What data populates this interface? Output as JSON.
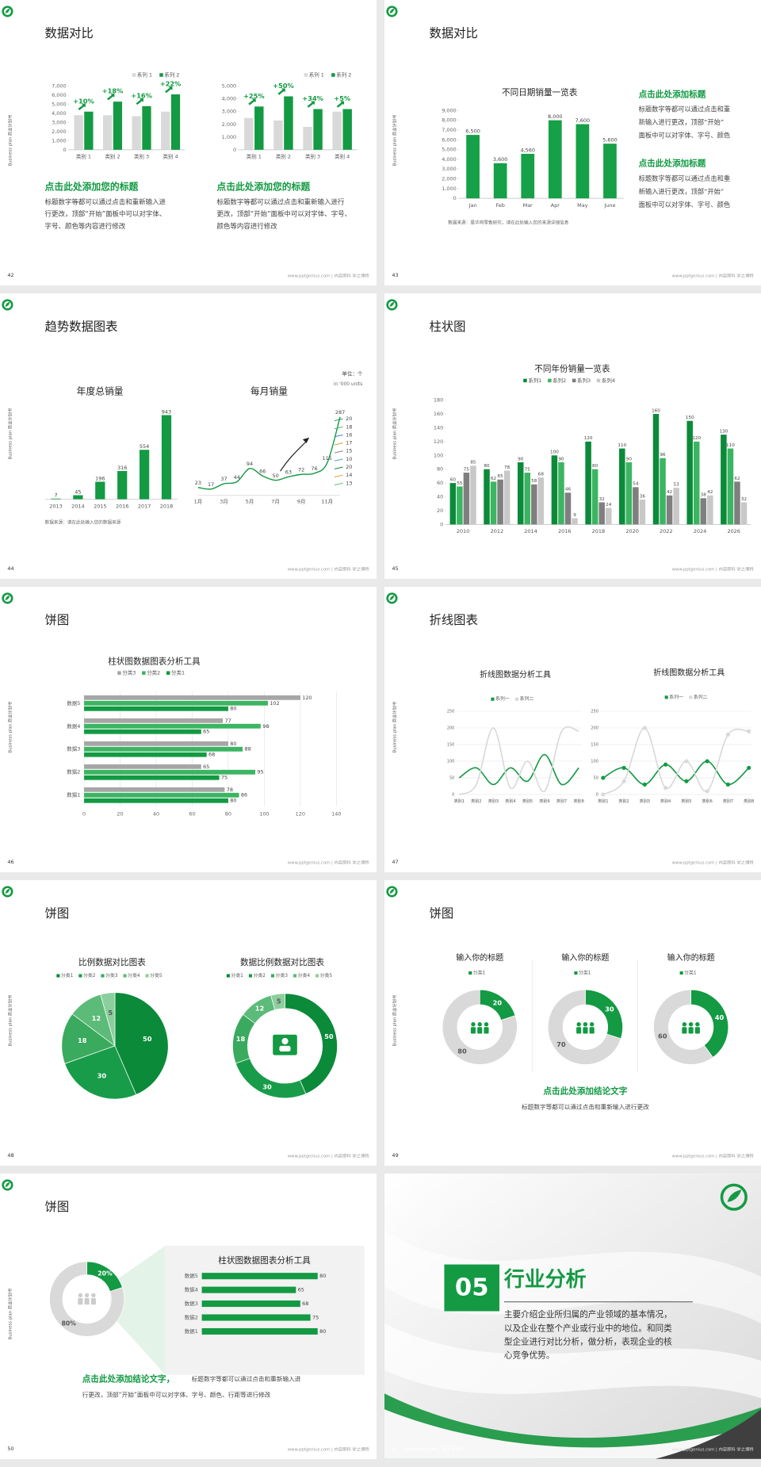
{
  "side_label": "Business plan 商业计划书",
  "footer": "www.pptgenius.com | 内容即科 学之博特",
  "slides": [
    {
      "number": "42",
      "title": "数据对比",
      "charts": [
        {
          "type": "bar",
          "categories": [
            "类别 1",
            "类别 2",
            "类别 3",
            "类别 4"
          ],
          "series": [
            {
              "name": "系列 1",
              "color": "#d9d9d9",
              "values": [
                3800,
                3800,
                3700,
                4200
              ]
            },
            {
              "name": "系列 2",
              "color": "#139a43",
              "values": [
                4200,
                5300,
                4800,
                6100
              ]
            }
          ],
          "ylim": [
            0,
            7000
          ],
          "yticks": [
            0,
            {
              "value": 1000,
              "label": "1,000"
            },
            {
              "value": 2000,
              "label": "2,000"
            },
            {
              "value": 3000,
              "label": "3,000"
            },
            {
              "value": 4000,
              "label": "4,000"
            },
            {
              "value": 5000,
              "label": "5,000"
            },
            {
              "value": 6000,
              "label": "6,000"
            },
            {
              "value": 7000,
              "label": "7,000"
            }
          ],
          "annotations": [
            "+10%",
            "+18%",
            "+16%",
            "+22%"
          ]
        },
        {
          "type": "bar",
          "categories": [
            "类别 1",
            "类别 2",
            "类别 3",
            "类别 4"
          ],
          "series": [
            {
              "name": "系列 1",
              "color": "#d9d9d9",
              "values": [
                2500,
                2300,
                1800,
                3000
              ]
            },
            {
              "name": "系列 2",
              "color": "#139a43",
              "values": [
                3400,
                4200,
                3200,
                3200
              ]
            }
          ],
          "ylim": [
            0,
            5000
          ],
          "yticks": [
            0,
            {
              "value": 1000,
              "label": "1,000"
            },
            {
              "value": 2000,
              "label": "2,000"
            },
            {
              "value": 3000,
              "label": "3,000"
            },
            {
              "value": 4000,
              "label": "4,000"
            },
            {
              "value": 5000,
              "label": "5,000"
            }
          ],
          "annotations": [
            "+25%",
            "+50%",
            "+34%",
            "+5%"
          ]
        }
      ],
      "headings": [
        "点击此处添加您的标题",
        "点击此处添加您的标题"
      ],
      "body": [
        [
          "标题数字等都可以通过点击和重新输入进",
          "行更改，顶部“开始”面板中可以对字体、",
          "字号、颜色等内容进行修改"
        ],
        [
          "标题数字等都可以通过点击和重新输入进行",
          "更改，顶部“开始”面板中可以对字体、字号、",
          "颜色等内容进行修改"
        ]
      ]
    },
    {
      "number": "43",
      "title": "数据对比",
      "charts": [
        {
          "type": "bar",
          "title": "不同日期销量一览表",
          "categories": [
            "Jan",
            "Feb",
            "Mar",
            "Apr",
            "May",
            "June"
          ],
          "values": [
            6500,
            3600,
            4560,
            8000,
            7600,
            5600
          ],
          "value_labels": [
            "6,500",
            "3,600",
            "4,560",
            "8,000",
            "7,600",
            "5,600"
          ],
          "color": "#16a047",
          "ylim": [
            0,
            9000
          ],
          "yticks": [
            0,
            {
              "value": 1000,
              "label": "1,000"
            },
            {
              "value": 2000,
              "label": "2,000"
            },
            {
              "value": 3000,
              "label": "3,000"
            },
            {
              "value": 4000,
              "label": "4,000"
            },
            {
              "value": 5000,
              "label": "5,000"
            },
            {
              "value": 6000,
              "label": "6,000"
            },
            {
              "value": 7000,
              "label": "7,000"
            },
            {
              "value": 8000,
              "label": "8,000"
            },
            {
              "value": 9000,
              "label": "9,000"
            }
          ]
        }
      ],
      "note": "数据来源：是华鸡零售研究，请在此处输入您的来源详细信息",
      "headings": [
        "点击此处添加标题",
        "点击此处添加标题"
      ],
      "body": [
        [
          "标题数字等都可以通过点击和重",
          "新输入进行更改，顶部“开始”",
          "面板中可以对字体、字号、颜色"
        ],
        [
          "标题数字等都可以通过点击和重",
          "新输入进行更改，顶部“开始”",
          "面板中可以对字体、字号、颜色"
        ]
      ]
    },
    {
      "number": "44",
      "title": "趋势数据图表",
      "charts": [
        {
          "type": "bar",
          "title": "年度总销量",
          "categories": [
            "2013",
            "2014",
            "2015",
            "2016",
            "2017",
            "2018"
          ],
          "values": [
            7,
            45,
            196,
            316,
            554,
            943
          ],
          "color": "#139a43",
          "data_labels": true
        },
        {
          "type": "line",
          "title": "每月销量",
          "categories": [
            "1月",
            null,
            "3月",
            null,
            "5月",
            null,
            "7月",
            null,
            "9月",
            null,
            "11月",
            null
          ],
          "values": [
            23,
            17,
            37,
            44,
            94,
            66,
            50,
            63,
            72,
            76,
            115,
            287
          ],
          "color": "#139a43",
          "data_labels": true,
          "smooth": true,
          "end_labels": [
            "20",
            "18",
            "16",
            "17",
            "15",
            "10",
            "20",
            "14",
            "13"
          ]
        }
      ],
      "units": [
        "单位：个",
        "in '000 units"
      ],
      "note": "数据来源：请在此处输入您的数据来源"
    },
    {
      "number": "45",
      "title": "柱状图",
      "charts": [
        {
          "type": "bar",
          "title": "不同年份销量一览表",
          "categories": [
            "2010",
            "2012",
            "2014",
            "2016",
            "2018",
            "2020",
            "2022",
            "2024",
            "2026"
          ],
          "series": [
            {
              "name": "系列1",
              "color": "#0b8a3a",
              "values": [
                60,
                80,
                90,
                100,
                120,
                110,
                160,
                150,
                130
              ]
            },
            {
              "name": "系列2",
              "color": "#3bb561",
              "values": [
                55,
                62,
                75,
                90,
                80,
                90,
                96,
                120,
                110
              ]
            },
            {
              "name": "系列3",
              "color": "#7f7f7f",
              "values": [
                75,
                65,
                58,
                46,
                32,
                54,
                42,
                38,
                62
              ]
            },
            {
              "name": "系列4",
              "color": "#c8c8c8",
              "values": [
                85,
                78,
                68,
                9,
                24,
                36,
                53,
                42,
                32
              ]
            }
          ],
          "ylim": [
            0,
            180
          ],
          "yticks": [
            0,
            20,
            40,
            60,
            80,
            100,
            120,
            140,
            160,
            180
          ],
          "data_labels": true
        }
      ]
    },
    {
      "number": "46",
      "title": "饼图",
      "charts": [
        {
          "type": "hbar",
          "title": "柱状图数据图表分析工具",
          "categories": [
            "数据1",
            "数据2",
            "数据3",
            "数据4",
            "数据5"
          ],
          "series": [
            {
              "name": "分类3",
              "color": "#a6a6a6",
              "values": [
                78,
                65,
                80,
                77,
                120
              ]
            },
            {
              "name": "分类2",
              "color": "#3bb561",
              "values": [
                86,
                95,
                88,
                98,
                102
              ]
            },
            {
              "name": "分类1",
              "color": "#139a43",
              "values": [
                80,
                75,
                68,
                65,
                80
              ]
            }
          ],
          "xlim": [
            0,
            140
          ],
          "xticks": [
            0,
            20,
            40,
            60,
            80,
            100,
            120,
            140
          ],
          "grid": true,
          "data_labels": true
        }
      ]
    },
    {
      "number": "47",
      "title": "折线图表",
      "charts": [
        {
          "type": "line",
          "title": "折线图数据分析工具",
          "categories": [
            "类别1",
            "类别2",
            "类别3",
            "类别4",
            "类别5",
            "类别6",
            "类别7",
            "类别8"
          ],
          "series": [
            {
              "name": "系列一",
              "color": "#139a43",
              "values": [
                50,
                80,
                30,
                80,
                40,
                120,
                30,
                80
              ]
            },
            {
              "name": "系列二",
              "color": "#d9d9d9",
              "values": [
                0,
                30,
                200,
                20,
                100,
                10,
                190,
                190
              ]
            }
          ],
          "ylim": [
            0,
            250
          ],
          "yticks": [
            0,
            50,
            100,
            150,
            200,
            250
          ],
          "grid": true,
          "smooth": true
        },
        {
          "type": "line",
          "title": "折线图数据分析工具",
          "categories": [
            "类别1",
            "类别2",
            "类别3",
            "类别4",
            "类别5",
            "类别6",
            "类别7",
            "类别8"
          ],
          "series": [
            {
              "name": "系列一",
              "color": "#139a43",
              "values": [
                50,
                80,
                30,
                90,
                40,
                100,
                30,
                80
              ]
            },
            {
              "name": "系列二",
              "color": "#d9d9d9",
              "values": [
                0,
                40,
                200,
                20,
                100,
                10,
                180,
                190
              ]
            }
          ],
          "ylim": [
            0,
            250
          ],
          "yticks": [
            0,
            50,
            100,
            150,
            200,
            250
          ],
          "grid": true,
          "smooth": true,
          "markers": true
        }
      ]
    },
    {
      "number": "48",
      "title": "饼图",
      "charts": [
        {
          "type": "pie",
          "title": "比例数据对比图表",
          "categories": [
            "分类1",
            "分类2",
            "分类3",
            "分类4",
            "分类5"
          ],
          "values": [
            50,
            30,
            18,
            12,
            5
          ],
          "colors": [
            "#0b8a3a",
            "#199c49",
            "#3aaa5e",
            "#5cbb79",
            "#8ccf9e"
          ]
        },
        {
          "type": "donut",
          "title": "数据比例数据对比图表",
          "categories": [
            "分类1",
            "分类2",
            "分类3",
            "分类4",
            "分类5"
          ],
          "values": [
            50,
            30,
            18,
            12,
            5
          ],
          "colors": [
            "#0b8a3a",
            "#199c49",
            "#3aaa5e",
            "#5cbb79",
            "#8ccf9e"
          ]
        }
      ]
    },
    {
      "number": "49",
      "title": "饼图",
      "charts": [
        {
          "type": "donut",
          "title": "输入你的标题",
          "categories": [
            "分类1",
            null
          ],
          "values": [
            20,
            80
          ],
          "colors": [
            "#139a43",
            "#d9d9d9"
          ]
        },
        {
          "type": "donut",
          "title": "输入你的标题",
          "categories": [
            "分类1",
            null
          ],
          "values": [
            30,
            70
          ],
          "colors": [
            "#139a43",
            "#d9d9d9"
          ]
        },
        {
          "type": "donut",
          "title": "输入你的标题",
          "categories": [
            "分类1",
            null
          ],
          "values": [
            40,
            60
          ],
          "colors": [
            "#139a43",
            "#d9d9d9"
          ]
        }
      ],
      "heading": "点击此处添加结论文字",
      "body": "标题数字等都可以通过点击和重新输入进行更改"
    },
    {
      "number": "50",
      "title": "饼图",
      "charts": [
        {
          "type": "donut",
          "values": [
            20,
            80
          ],
          "value_labels": [
            "20%",
            "80%"
          ],
          "colors": [
            "#139a43",
            "#d9d9d9"
          ]
        },
        {
          "type": "hbar",
          "title": "柱状图数据图表分析工具",
          "categories": [
            "数据1",
            "数据2",
            "数据3",
            "数据4",
            "数据5"
          ],
          "values": [
            80,
            75,
            68,
            65,
            80
          ],
          "color": "#139a43",
          "data_labels": true
        }
      ],
      "heading": "点击此处添加结论文字，",
      "body": [
        "标题数字等都可以通过点击和重新输入进",
        "行更改，顶部“开始”面板中可以对字体、字号、颜色、行距等进行修改"
      ]
    },
    {
      "number": "51",
      "section_number": "05",
      "title": "行业分析",
      "body": [
        "主要介绍企业所归属的产业领域的基本情况，",
        "以及企业在整个产业或行业中的地位。和同类",
        "型企业进行对比分析，做分析，表现企业的核",
        "心竞争优势。"
      ],
      "footer_label": "Business plan | 商业计划书"
    }
  ]
}
